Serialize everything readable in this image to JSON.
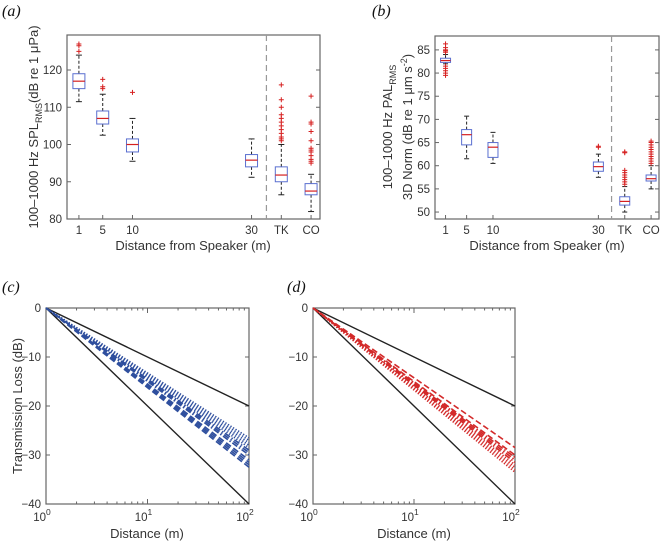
{
  "panel_labels": [
    "(a)",
    "(b)",
    "(c)",
    "(d)"
  ],
  "chart_data": [
    {
      "id": "a",
      "type": "box",
      "xlabel": "Distance from Speaker (m)",
      "ylabel_main": "100–1000 Hz SPL",
      "ylabel_sub": "RMS",
      "ylabel_tail": "(dB re 1 μPa)",
      "ylim": [
        80,
        129.4
      ],
      "xlim": [
        -1,
        41.5
      ],
      "yticks": [
        80,
        90,
        100,
        110,
        120
      ],
      "separator_x": 32.5,
      "categories": [
        {
          "label": "1",
          "x": 1,
          "q1": 115,
          "median": 117,
          "q3": 119,
          "whisker_low": 111.5,
          "whisker_high": 124,
          "outliers": [
            125,
            126.5,
            127
          ]
        },
        {
          "label": "5",
          "x": 5,
          "q1": 105.5,
          "median": 107,
          "q3": 109,
          "whisker_low": 102.5,
          "whisker_high": 113.5,
          "outliers": [
            115,
            115.5,
            117.5
          ]
        },
        {
          "label": "10",
          "x": 10,
          "q1": 98,
          "median": 100,
          "q3": 101.5,
          "whisker_low": 95.5,
          "whisker_high": 107,
          "outliers": [
            114
          ]
        },
        {
          "label": "30",
          "x": 30,
          "q1": 94,
          "median": 95.8,
          "q3": 97.3,
          "whisker_low": 91.2,
          "whisker_high": 101.5,
          "outliers": []
        },
        {
          "label": "TK",
          "x": 35,
          "q1": 90,
          "median": 91.8,
          "q3": 94,
          "whisker_low": 86.5,
          "whisker_high": 100,
          "outliers": [
            101,
            101.5,
            102,
            103,
            104,
            105,
            106,
            107,
            108,
            110,
            112,
            116
          ]
        },
        {
          "label": "CO",
          "x": 40,
          "q1": 86.5,
          "median": 87.5,
          "q3": 89.5,
          "whisker_low": 82,
          "whisker_high": 92,
          "outliers": [
            95,
            95.5,
            96,
            97,
            98,
            98.5,
            99,
            101,
            103.5,
            105.5,
            106,
            113
          ]
        }
      ]
    },
    {
      "id": "b",
      "type": "box",
      "xlabel": "Distance from Speaker (m)",
      "ylabel_main": "100–1000 Hz PAL",
      "ylabel_sub": "RMS",
      "ylabel_line2": "3D Norm (dB re 1 μm s",
      "ylabel_line2_sup": "-2",
      "ylabel_line2_tail": ")",
      "ylim": [
        48.5,
        88
      ],
      "xlim": [
        -1,
        41.5
      ],
      "yticks": [
        50,
        55,
        60,
        65,
        70,
        75,
        80,
        85
      ],
      "separator_x": 32.5,
      "categories": [
        {
          "label": "1",
          "x": 1,
          "q1": 82.3,
          "median": 82.7,
          "q3": 83.2,
          "whisker_low": 82,
          "whisker_high": 84,
          "outliers": [
            79.5,
            80,
            80.5,
            81,
            81.5,
            84.5,
            84.8,
            85,
            85.5,
            86.3
          ]
        },
        {
          "label": "5",
          "x": 5,
          "q1": 64.5,
          "median": 66.7,
          "q3": 67.8,
          "whisker_low": 61.5,
          "whisker_high": 70.7,
          "outliers": []
        },
        {
          "label": "10",
          "x": 10,
          "q1": 61.8,
          "median": 64,
          "q3": 65,
          "whisker_low": 60.5,
          "whisker_high": 67.2,
          "outliers": []
        },
        {
          "label": "30",
          "x": 30,
          "q1": 58.8,
          "median": 59.8,
          "q3": 60.8,
          "whisker_low": 57.5,
          "whisker_high": 62.5,
          "outliers": [
            64,
            64.2
          ]
        },
        {
          "label": "TK",
          "x": 35,
          "q1": 51.5,
          "median": 52.3,
          "q3": 53.3,
          "whisker_low": 50,
          "whisker_high": 55.5,
          "outliers": [
            56,
            56.5,
            57,
            57.5,
            58,
            58.5,
            59,
            62.8,
            63
          ]
        },
        {
          "label": "CO",
          "x": 40,
          "q1": 56.7,
          "median": 57.2,
          "q3": 58,
          "whisker_low": 55,
          "whisker_high": 60,
          "outliers": [
            60.5,
            61,
            61.5,
            62,
            62.5,
            63,
            63.5,
            64,
            64.5,
            65,
            65.3
          ]
        }
      ]
    },
    {
      "id": "c",
      "type": "line",
      "xscale": "log",
      "xlabel": "Distance (m)",
      "ylabel": "Transmission Loss (dB)",
      "xlim": [
        1,
        100
      ],
      "ylim": [
        -40,
        0
      ],
      "xticks": [
        {
          "base": "10",
          "exp": "0"
        },
        {
          "base": "10",
          "exp": "1"
        },
        {
          "base": "10",
          "exp": "2"
        }
      ],
      "yticks": [
        "0",
        "−10",
        "−20",
        "−30",
        "−40"
      ],
      "ytick_values": [
        0,
        -10,
        -20,
        -30,
        -40
      ],
      "color": "#2f4f9e",
      "series": [
        {
          "name": "10log10 reference",
          "style": "solid",
          "color": "#222222",
          "tl_at_100m": -20
        },
        {
          "name": "20log10 reference",
          "style": "solid",
          "color": "#222222",
          "tl_at_100m": -40
        },
        {
          "style": "dotted",
          "tl_at_100m": -26.5
        },
        {
          "style": "dotted",
          "tl_at_100m": -27
        },
        {
          "style": "dotted",
          "tl_at_100m": -27.5
        },
        {
          "style": "dotted",
          "tl_at_100m": -28
        },
        {
          "style": "dotted",
          "tl_at_100m": -28.5
        },
        {
          "style": "dashdot",
          "tl_at_100m": -29
        },
        {
          "style": "dashdot",
          "tl_at_100m": -29.5
        },
        {
          "style": "dashdot",
          "tl_at_100m": -30
        },
        {
          "style": "dashed",
          "tl_at_100m": -31
        },
        {
          "style": "dashed",
          "tl_at_100m": -31.5
        },
        {
          "style": "dashed",
          "tl_at_100m": -32
        },
        {
          "style": "dashed",
          "tl_at_100m": -32.5
        }
      ]
    },
    {
      "id": "d",
      "type": "line",
      "xscale": "log",
      "xlabel": "Distance (m)",
      "ylabel": "",
      "xlim": [
        1,
        100
      ],
      "ylim": [
        -40,
        0
      ],
      "xticks": [
        {
          "base": "10",
          "exp": "0"
        },
        {
          "base": "10",
          "exp": "1"
        },
        {
          "base": "10",
          "exp": "2"
        }
      ],
      "yticks": [
        "0",
        "−10",
        "−20",
        "−30",
        "−40"
      ],
      "ytick_values": [
        0,
        -10,
        -20,
        -30,
        -40
      ],
      "color": "#d32a2a",
      "series": [
        {
          "name": "10log10 reference",
          "style": "solid",
          "color": "#222222",
          "tl_at_100m": -20
        },
        {
          "name": "20log10 reference",
          "style": "solid",
          "color": "#222222",
          "tl_at_100m": -40
        },
        {
          "style": "dashed",
          "tl_at_100m": -28.5
        },
        {
          "style": "dashed",
          "tl_at_100m": -30
        },
        {
          "style": "dashdot",
          "tl_at_100m": -30.5
        },
        {
          "style": "dashdot",
          "tl_at_100m": -31
        },
        {
          "style": "dashdot",
          "tl_at_100m": -31.5
        },
        {
          "style": "dotted",
          "tl_at_100m": -32
        },
        {
          "style": "dotted",
          "tl_at_100m": -32.5
        },
        {
          "style": "dotted",
          "tl_at_100m": -33
        },
        {
          "style": "dotted",
          "tl_at_100m": -33.5
        }
      ]
    }
  ]
}
